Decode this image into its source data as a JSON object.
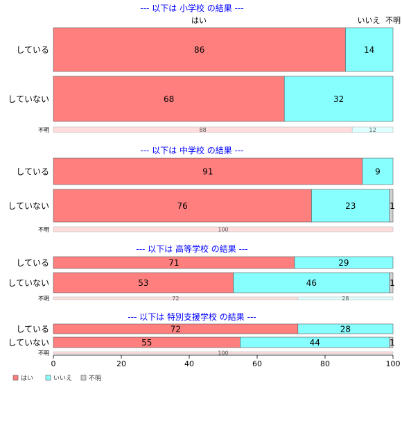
{
  "chart_data": {
    "type": "bar",
    "orientation": "horizontal",
    "stacked": true,
    "percent_scale": true,
    "xlim": [
      0,
      100
    ],
    "x_ticks": [
      0,
      20,
      40,
      60,
      80,
      100
    ],
    "grid": false,
    "legend_position": "bottom-left",
    "legend": [
      {
        "label": "はい",
        "color": "#ff7f7f"
      },
      {
        "label": "いいえ",
        "color": "#88ffff"
      },
      {
        "label": "不明",
        "color": "#d3d3d3"
      }
    ],
    "header_labels": [
      "はい",
      "いいえ",
      "不明"
    ],
    "panels": [
      {
        "title": "--- 以下は 小学校 の結果 ---",
        "rows": [
          {
            "label": "している",
            "values": [
              86,
              14,
              0
            ]
          },
          {
            "label": "していない",
            "values": [
              68,
              32,
              0
            ]
          },
          {
            "label": "不明",
            "values": [
              88,
              12,
              0
            ],
            "faded": true
          }
        ]
      },
      {
        "title": "--- 以下は 中学校 の結果 ---",
        "rows": [
          {
            "label": "している",
            "values": [
              91,
              9,
              0
            ]
          },
          {
            "label": "していない",
            "values": [
              76,
              23,
              1
            ]
          },
          {
            "label": "不明",
            "values": [
              100,
              0,
              0
            ],
            "faded": true
          }
        ]
      },
      {
        "title": "--- 以下は 高等学校 の結果 ---",
        "rows": [
          {
            "label": "している",
            "values": [
              71,
              29,
              0
            ]
          },
          {
            "label": "していない",
            "values": [
              53,
              46,
              1
            ]
          },
          {
            "label": "不明",
            "values": [
              72,
              28,
              0
            ],
            "faded": true
          }
        ]
      },
      {
        "title": "--- 以下は 特別支援学校 の結果 ---",
        "rows": [
          {
            "label": "している",
            "values": [
              72,
              28,
              0
            ]
          },
          {
            "label": "していない",
            "values": [
              55,
              44,
              1
            ]
          },
          {
            "label": "不明",
            "values": [
              100,
              0,
              0
            ],
            "faded": true
          }
        ]
      }
    ],
    "colors": {
      "yes": "#ff7f7f",
      "no": "#88ffff",
      "unknown": "#d3d3d3",
      "yes_faded": "#ffdddd",
      "no_faded": "#ddffff",
      "unknown_faded": "#f2f2f2",
      "title": "#0000ff"
    }
  }
}
